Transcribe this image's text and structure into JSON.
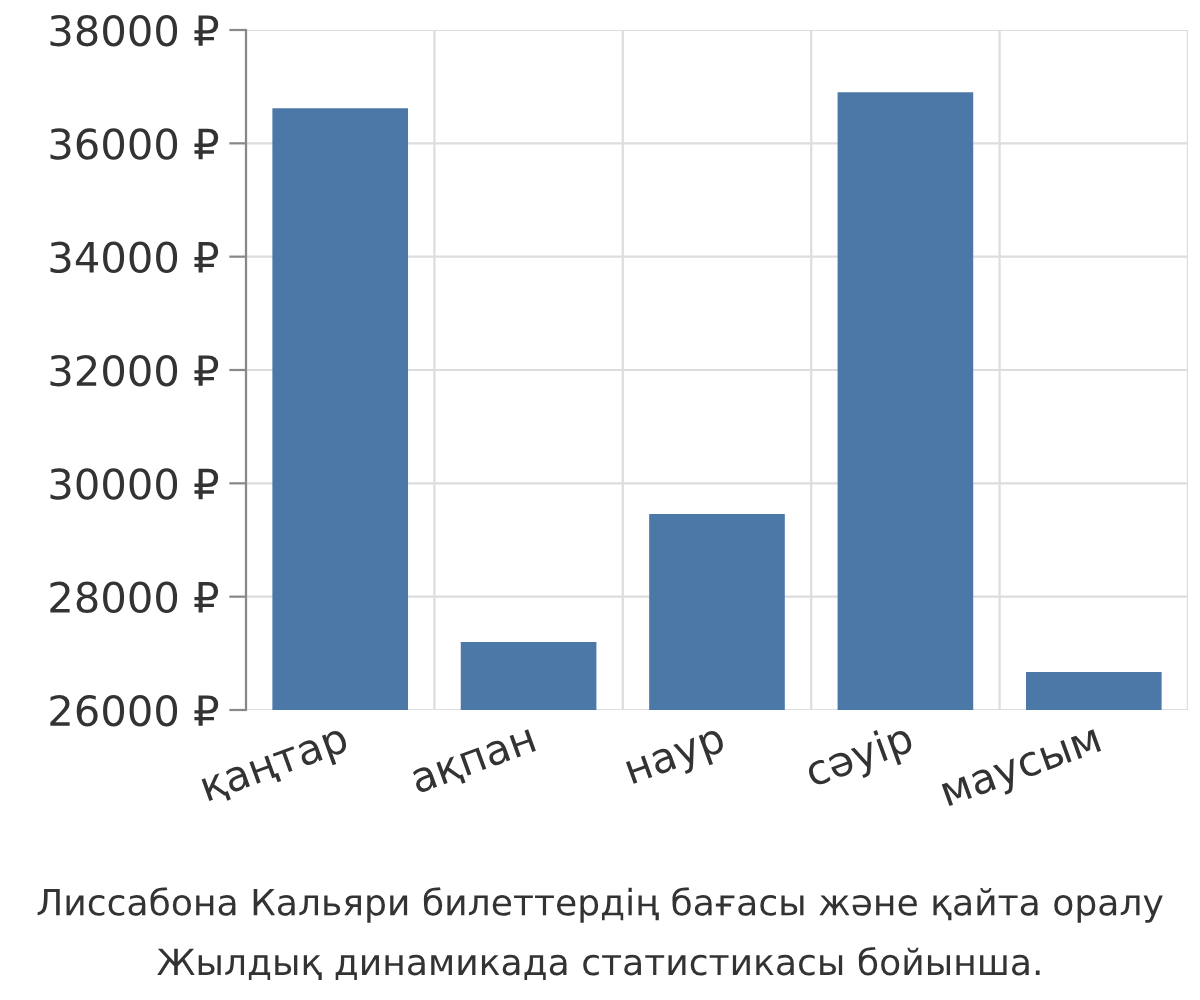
{
  "chart_data": {
    "type": "bar",
    "categories": [
      "қаңтар",
      "ақпан",
      "наур",
      "сәуір",
      "маусым"
    ],
    "values": [
      36620,
      27200,
      29460,
      36900,
      26670
    ],
    "color": "#4c78a8",
    "ylim": [
      26000,
      38000
    ],
    "yticks": [
      {
        "value": 26000,
        "label": "26000 ₽"
      },
      {
        "value": 28000,
        "label": "28000 ₽"
      },
      {
        "value": 30000,
        "label": "30000 ₽"
      },
      {
        "value": 32000,
        "label": "32000 ₽"
      },
      {
        "value": 34000,
        "label": "34000 ₽"
      },
      {
        "value": 36000,
        "label": "36000 ₽"
      },
      {
        "value": 38000,
        "label": "38000 ₽"
      }
    ],
    "grid": true,
    "annotations": [
      "Лиссабона Кальяри билеттердің бағасы және қайта оралу",
      "Жылдық динамикада статистикасы бойынша."
    ]
  }
}
